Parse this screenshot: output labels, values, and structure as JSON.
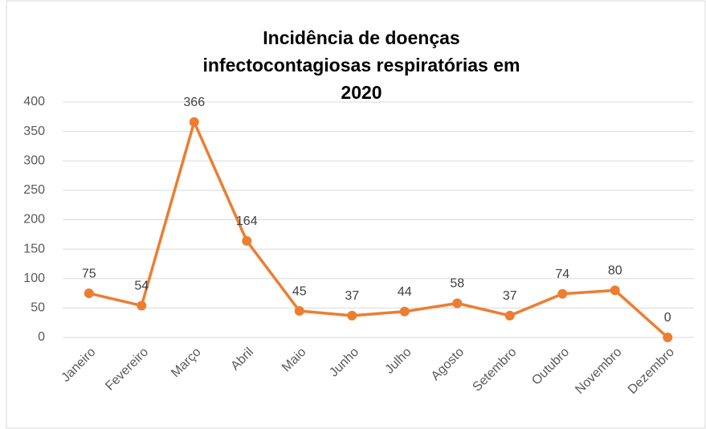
{
  "chart_data": {
    "type": "line",
    "title": "Incidência de doenças infectocontagiosas respiratórias em 2020",
    "categories": [
      "Janeiro",
      "Fevereiro",
      "Março",
      "Abril",
      "Maio",
      "Junho",
      "Julho",
      "Agosto",
      "Setembro",
      "Outubro",
      "Novembro",
      "Dezembro"
    ],
    "values": [
      75,
      54,
      366,
      164,
      45,
      37,
      44,
      58,
      37,
      74,
      80,
      0
    ],
    "color": "#ed7d31",
    "ylim": [
      0,
      400
    ],
    "yticks": [
      0,
      50,
      100,
      150,
      200,
      250,
      300,
      350,
      400
    ],
    "grid": true
  }
}
